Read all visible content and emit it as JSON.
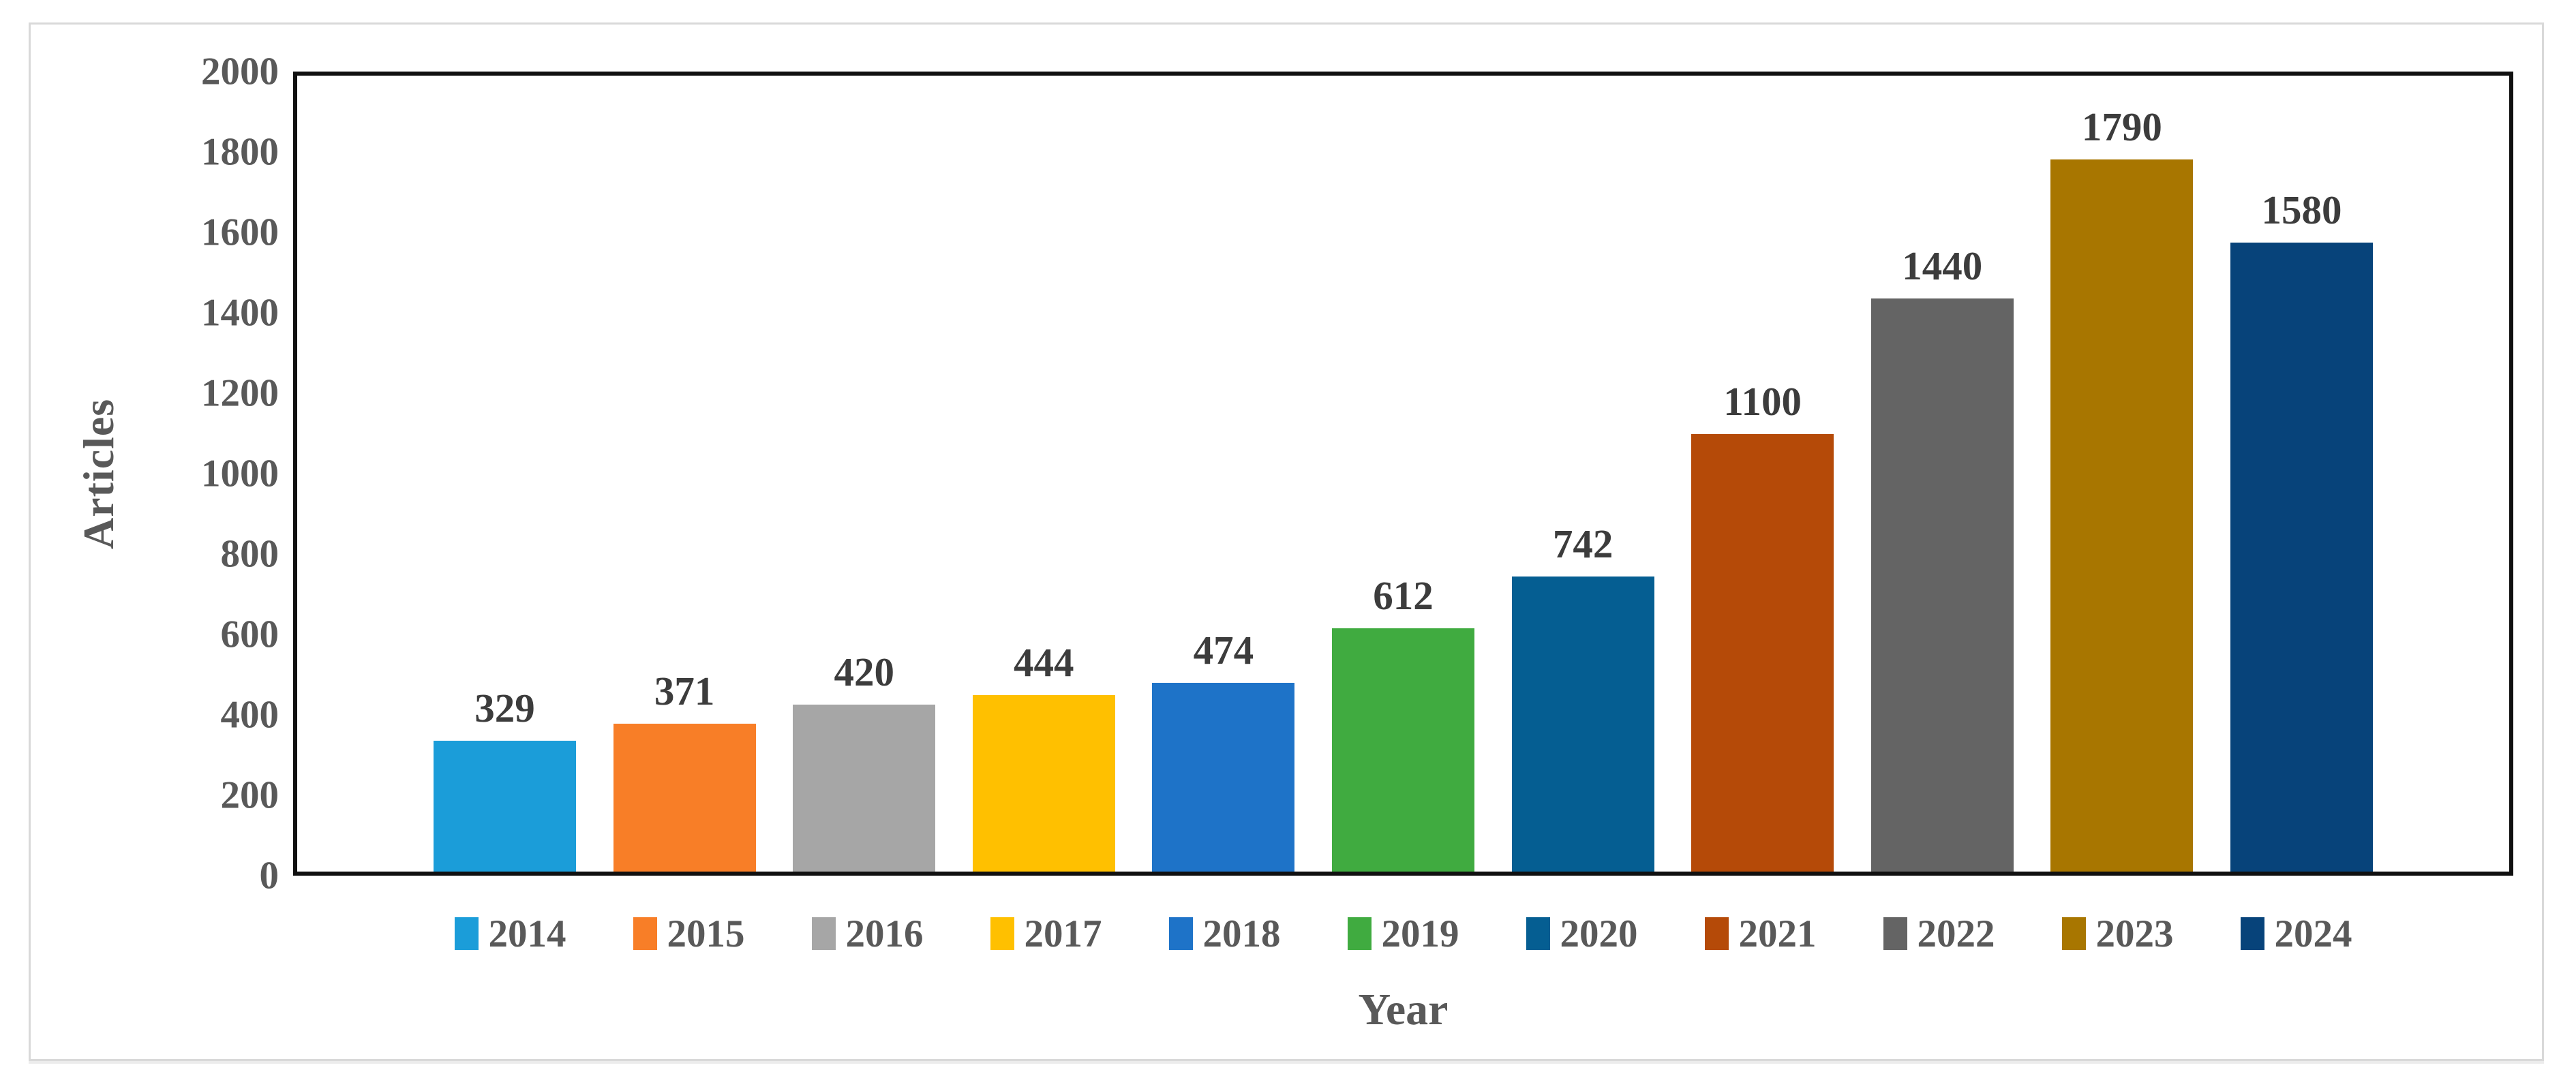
{
  "chart_data": {
    "type": "bar",
    "title": "",
    "xlabel": "Year",
    "ylabel": "Articles",
    "categories": [
      "2014",
      "2015",
      "2016",
      "2017",
      "2018",
      "2019",
      "2020",
      "2021",
      "2022",
      "2023",
      "2024"
    ],
    "values": [
      329,
      371,
      420,
      444,
      474,
      612,
      742,
      1100,
      1440,
      1790,
      1580
    ],
    "data_labels": [
      "329",
      "371",
      "420",
      "444",
      "474",
      "612",
      "742",
      "1100",
      "1440",
      "1790",
      "1580"
    ],
    "bar_colors": [
      "#1B9DD9",
      "#F87E27",
      "#A6A6A6",
      "#FFC000",
      "#1E73C8",
      "#40AB40",
      "#055E92",
      "#B54A08",
      "#646464",
      "#A87600",
      "#07437A"
    ],
    "ylim": [
      0,
      2000
    ],
    "y_ticks": [
      0,
      200,
      400,
      600,
      800,
      1000,
      1200,
      1400,
      1600,
      1800,
      2000
    ],
    "grid": "off",
    "legend_position": "bottom",
    "frame_color": "#101010",
    "tick_label_color": "#595959",
    "value_label_color": "#3c3c3c"
  }
}
